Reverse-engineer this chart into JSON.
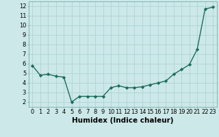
{
  "x": [
    0,
    1,
    2,
    3,
    4,
    5,
    6,
    7,
    8,
    9,
    10,
    11,
    12,
    13,
    14,
    15,
    16,
    17,
    18,
    19,
    20,
    21,
    22,
    23
  ],
  "y": [
    5.8,
    4.8,
    4.9,
    4.7,
    4.6,
    2.0,
    2.6,
    2.6,
    2.6,
    2.6,
    3.5,
    3.7,
    3.5,
    3.5,
    3.6,
    3.8,
    4.0,
    4.2,
    4.9,
    5.4,
    5.9,
    7.5,
    11.7,
    11.9
  ],
  "line_color": "#1a6b5a",
  "marker": "D",
  "marker_size": 2.2,
  "bg_color": "#cce8e8",
  "grid_color": "#add4d4",
  "xlabel": "Humidex (Indice chaleur)",
  "xlim": [
    -0.5,
    23.5
  ],
  "ylim": [
    1.5,
    12.5
  ],
  "yticks": [
    2,
    3,
    4,
    5,
    6,
    7,
    8,
    9,
    10,
    11,
    12
  ],
  "xticks": [
    0,
    1,
    2,
    3,
    4,
    5,
    6,
    7,
    8,
    9,
    10,
    11,
    12,
    13,
    14,
    15,
    16,
    17,
    18,
    19,
    20,
    21,
    22,
    23
  ],
  "tick_fontsize": 6,
  "xlabel_fontsize": 7.5,
  "linewidth": 1.0
}
